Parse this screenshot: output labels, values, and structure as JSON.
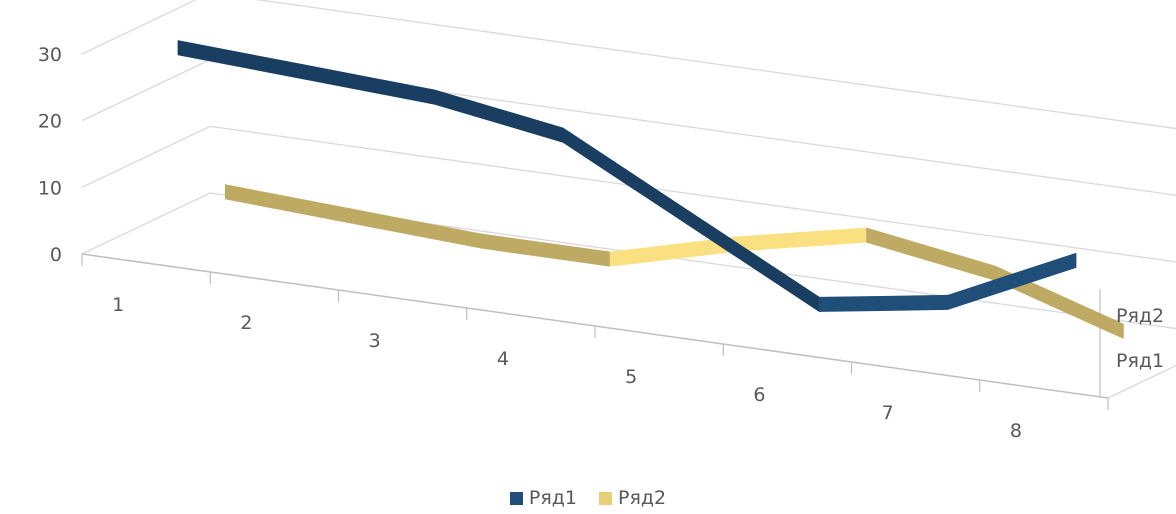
{
  "chart_data": {
    "type": "line",
    "style": "3d-ribbon",
    "title": "",
    "xlabel": "",
    "ylabel": "",
    "categories": [
      "1",
      "2",
      "3",
      "4",
      "5",
      "6",
      "7",
      "8"
    ],
    "series": [
      {
        "name": "Ряд1",
        "values": [
          30,
          29,
          28,
          25,
          15,
          5,
          8,
          17
        ],
        "color": "#1F4E79"
      },
      {
        "name": "Ряд2",
        "values": [
          5,
          4,
          3,
          3,
          8,
          12,
          9,
          3
        ],
        "color": "#E8CF77"
      }
    ],
    "depth_labels": [
      "Ряд2",
      "Ряд1"
    ],
    "y_ticks": [
      "0",
      "10",
      "20",
      "30"
    ],
    "ylim": [
      0,
      30
    ],
    "grid": true,
    "legend": "bottom-center"
  }
}
